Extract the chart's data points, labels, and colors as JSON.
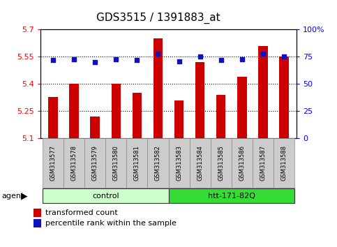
{
  "title": "GDS3515 / 1391883_at",
  "samples": [
    "GSM313577",
    "GSM313578",
    "GSM313579",
    "GSM313580",
    "GSM313581",
    "GSM313582",
    "GSM313583",
    "GSM313584",
    "GSM313585",
    "GSM313586",
    "GSM313587",
    "GSM313588"
  ],
  "transformed_count": [
    5.33,
    5.4,
    5.22,
    5.4,
    5.35,
    5.65,
    5.31,
    5.52,
    5.34,
    5.44,
    5.61,
    5.55
  ],
  "percentile_rank": [
    72,
    73,
    70,
    73,
    72,
    78,
    71,
    75,
    72,
    73,
    78,
    75
  ],
  "ylim_left": [
    5.1,
    5.7
  ],
  "ylim_right": [
    0,
    100
  ],
  "yticks_left": [
    5.1,
    5.25,
    5.4,
    5.55,
    5.7
  ],
  "ytick_labels_left": [
    "5.1",
    "5.25",
    "5.4",
    "5.55",
    "5.7"
  ],
  "yticks_right": [
    0,
    25,
    50,
    75,
    100
  ],
  "ytick_labels_right": [
    "0",
    "25",
    "50",
    "75",
    "100%"
  ],
  "hlines": [
    5.25,
    5.4,
    5.55
  ],
  "bar_color": "#cc0000",
  "dot_color": "#1111bb",
  "groups": [
    {
      "label": "control",
      "start": 0,
      "end": 5,
      "color": "#ccffcc"
    },
    {
      "label": "htt-171-82Q",
      "start": 6,
      "end": 11,
      "color": "#33dd33"
    }
  ],
  "agent_label": "agent",
  "legend_bar_label": "transformed count",
  "legend_dot_label": "percentile rank within the sample",
  "title_fontsize": 11,
  "tick_fontsize": 8,
  "label_fontsize": 7.5,
  "bar_width": 0.45
}
